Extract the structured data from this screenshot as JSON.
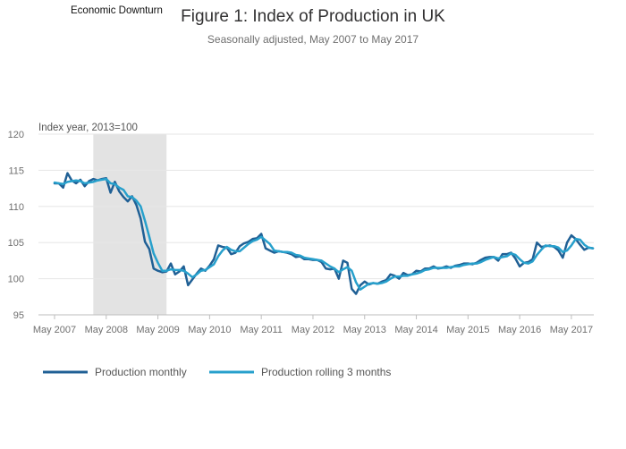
{
  "chart_data": {
    "type": "line",
    "title": "Figure 1: Index of Production in UK",
    "subtitle": "Seasonally adjusted, May 2007 to May 2017",
    "ylabel": "Index year, 2013=100",
    "ylim": [
      95,
      120
    ],
    "yticks": [
      95,
      100,
      105,
      110,
      115,
      120
    ],
    "xticks": [
      "May 2007",
      "May 2008",
      "May 2009",
      "May 2010",
      "May 2011",
      "May 2012",
      "May 2013",
      "May 2014",
      "May 2015",
      "May 2016",
      "May 2017"
    ],
    "x_start": "May 2007",
    "x_end": "May 2017",
    "shaded_region": {
      "label": "Economic Downturn",
      "start": "Feb 2008",
      "end": "Jul 2009",
      "color": "#e3e3e3"
    },
    "legend_position": "bottom-left",
    "grid": true,
    "series": [
      {
        "name": "Production monthly",
        "color": "#206095",
        "values": [
          113.2,
          113.2,
          112.6,
          114.6,
          113.6,
          113.2,
          113.7,
          112.8,
          113.5,
          113.8,
          113.6,
          113.8,
          113.9,
          111.9,
          113.4,
          112.1,
          111.3,
          110.7,
          111.4,
          110.2,
          108.3,
          105.1,
          104.1,
          101.4,
          101.1,
          100.9,
          101.0,
          102.1,
          100.6,
          101.0,
          101.7,
          99.1,
          99.9,
          100.7,
          101.4,
          101.1,
          101.8,
          102.7,
          104.6,
          104.4,
          104.3,
          103.4,
          103.6,
          104.5,
          104.9,
          105.1,
          105.5,
          105.6,
          106.2,
          104.2,
          103.9,
          103.6,
          103.8,
          103.7,
          103.6,
          103.4,
          103.0,
          103.1,
          102.7,
          102.7,
          102.6,
          102.6,
          102.3,
          101.4,
          101.3,
          101.4,
          100.0,
          102.5,
          102.2,
          98.6,
          97.9,
          99.1,
          99.6,
          99.2,
          99.4,
          99.3,
          99.6,
          99.8,
          100.6,
          100.4,
          100.0,
          100.8,
          100.5,
          100.6,
          101.1,
          101.0,
          101.4,
          101.4,
          101.7,
          101.4,
          101.5,
          101.7,
          101.5,
          101.8,
          101.9,
          102.1,
          102.1,
          102.0,
          102.2,
          102.6,
          102.9,
          103.0,
          103.0,
          102.5,
          103.4,
          103.4,
          103.6,
          102.8,
          101.7,
          102.2,
          102.3,
          102.7,
          105.0,
          104.4,
          104.5,
          104.6,
          104.4,
          103.9,
          102.9,
          105.0,
          106.0,
          105.5,
          104.7,
          104.0,
          104.3,
          104.2
        ]
      },
      {
        "name": "Production rolling 3 months",
        "color": "#27a0cc",
        "values": [
          113.3,
          113.2,
          113.1,
          113.4,
          113.5,
          113.6,
          113.5,
          113.2,
          113.3,
          113.4,
          113.6,
          113.7,
          113.8,
          113.2,
          113.1,
          112.6,
          112.3,
          111.4,
          111.3,
          110.8,
          110.0,
          108.0,
          105.8,
          103.5,
          102.2,
          101.1,
          101.1,
          101.3,
          101.2,
          101.2,
          101.1,
          100.7,
          100.2,
          100.6,
          101.1,
          101.2,
          101.6,
          102.0,
          103.1,
          103.9,
          104.4,
          104.0,
          103.8,
          103.8,
          104.3,
          104.8,
          105.2,
          105.4,
          105.8,
          105.3,
          104.8,
          103.9,
          103.8,
          103.7,
          103.7,
          103.6,
          103.3,
          103.2,
          102.9,
          102.8,
          102.7,
          102.6,
          102.5,
          102.1,
          101.7,
          101.4,
          100.9,
          101.3,
          101.6,
          101.1,
          99.5,
          98.5,
          98.9,
          99.3,
          99.4,
          99.3,
          99.4,
          99.6,
          100.0,
          100.3,
          100.3,
          100.4,
          100.4,
          100.6,
          100.7,
          100.9,
          101.2,
          101.3,
          101.5,
          101.5,
          101.5,
          101.5,
          101.6,
          101.7,
          101.7,
          101.9,
          102.0,
          102.1,
          102.1,
          102.3,
          102.6,
          102.8,
          103.0,
          102.8,
          103.0,
          103.1,
          103.5,
          103.3,
          102.7,
          102.2,
          102.1,
          102.4,
          103.3,
          104.0,
          104.6,
          104.5,
          104.5,
          104.3,
          103.7,
          103.9,
          104.6,
          105.5,
          105.4,
          104.7,
          104.3,
          104.2
        ]
      }
    ]
  }
}
